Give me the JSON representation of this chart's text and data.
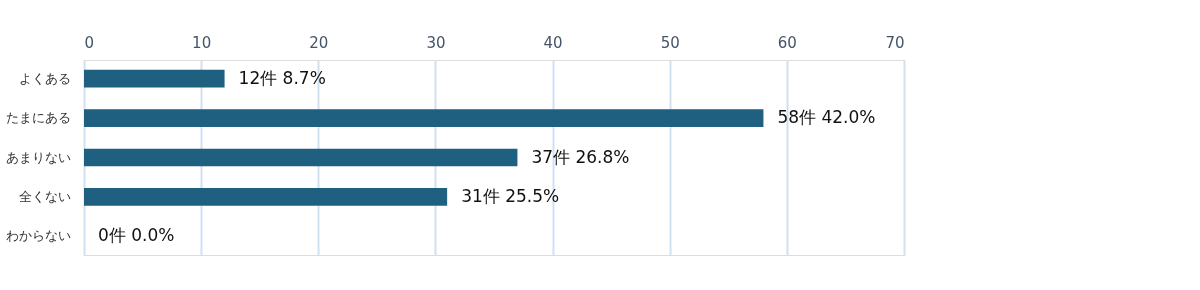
{
  "chart_data": {
    "type": "bar",
    "orientation": "horizontal",
    "categories": [
      "よくある",
      "たまにある",
      "あまりない",
      "全くない",
      "わからない"
    ],
    "values": [
      12,
      58,
      37,
      31,
      0
    ],
    "value_labels": [
      "12件  8.7%",
      "58件  42.0%",
      "37件  26.8%",
      "31件  25.5%",
      "0件  0.0%"
    ],
    "color": "#1f5f80",
    "xlim": [
      0,
      70
    ],
    "xticks": [
      0,
      10,
      20,
      30,
      40,
      50,
      60,
      70
    ],
    "grid": "x"
  }
}
